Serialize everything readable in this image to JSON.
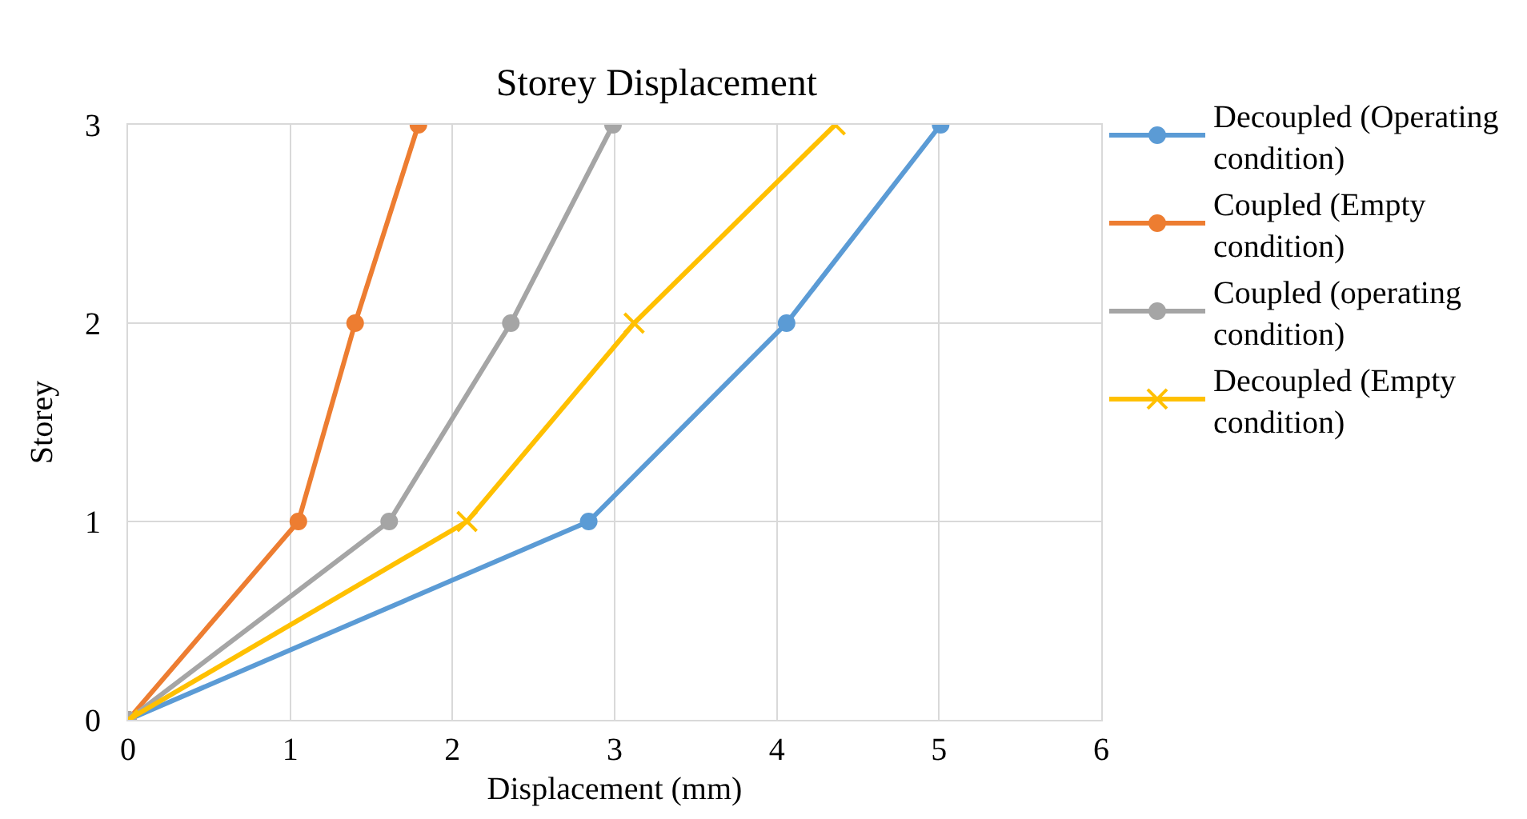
{
  "chart_data": {
    "type": "line",
    "title": "Storey Displacement",
    "xlabel": "Displacement (mm)",
    "ylabel": "Storey",
    "xlim": [
      0,
      6
    ],
    "xticks": [
      0,
      1,
      2,
      3,
      4,
      5,
      6
    ],
    "ylim": [
      0,
      3
    ],
    "yticks": [
      0,
      1,
      2,
      3
    ],
    "grid": true,
    "legend": "right",
    "line_style": "solid",
    "series": [
      {
        "name": "Decoupled (Operating condition)",
        "color": "#5b9bd5",
        "marker": "circle",
        "x": [
          0,
          2.84,
          4.06,
          5.01
        ],
        "values": [
          0,
          1,
          2,
          3
        ]
      },
      {
        "name": "Coupled (Empty condition)",
        "color": "#ed7d31",
        "marker": "circle",
        "x": [
          0,
          1.05,
          1.4,
          1.79
        ],
        "values": [
          0,
          1,
          2,
          3
        ]
      },
      {
        "name": "Coupled (operating condition)",
        "color": "#a5a5a5",
        "marker": "circle",
        "x": [
          0,
          1.61,
          2.36,
          2.99
        ],
        "values": [
          0,
          1,
          2,
          3
        ]
      },
      {
        "name": "Decoupled (Empty condition)",
        "color": "#ffc000",
        "marker": "cross",
        "x": [
          0,
          2.09,
          3.12,
          4.36
        ],
        "values": [
          0,
          1,
          2,
          3
        ]
      }
    ]
  }
}
